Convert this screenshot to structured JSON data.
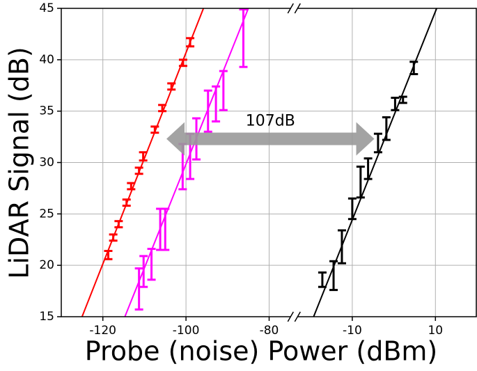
{
  "chart_data": {
    "type": "errorbar",
    "x_label": "Probe (noise) Power (dBm)",
    "y_label": "LiDAR Signal (dB)",
    "xlim": [
      -130,
      20
    ],
    "xbreak": [
      -74,
      -24
    ],
    "xticks": [
      -120,
      -100,
      -80,
      -10,
      10
    ],
    "ylim": [
      15,
      45
    ],
    "yticks": [
      15,
      20,
      25,
      30,
      35,
      40,
      45
    ],
    "grid": true,
    "series": [
      {
        "color": "#ff0000",
        "x": [
          -118.7,
          -117.5,
          -116.2,
          -114.3,
          -113.2,
          -111.3,
          -110.3,
          -107.5,
          -105.7,
          -103.5,
          -100.7,
          -99.0
        ],
        "values": [
          21.0,
          22.7,
          24.0,
          26.1,
          27.7,
          29.2,
          30.6,
          33.2,
          35.3,
          37.4,
          39.7,
          41.7
        ],
        "errors": [
          0.4,
          0.3,
          0.3,
          0.3,
          0.3,
          0.3,
          0.4,
          0.3,
          0.3,
          0.3,
          0.3,
          0.4
        ],
        "fit": {
          "x": [
            -125,
            -95.8
          ],
          "y": [
            15,
            45
          ]
        }
      },
      {
        "color": "#ff00ff",
        "x": [
          -111.3,
          -110.2,
          -108.3,
          -106.2,
          -105.0,
          -100.8,
          -99.0,
          -97.5,
          -94.7,
          -92.8,
          -91.0,
          -86.2
        ],
        "values": [
          17.7,
          19.4,
          20.1,
          23.5,
          23.5,
          29.6,
          30.6,
          32.3,
          35.0,
          35.7,
          37.0,
          42.1
        ],
        "errors": [
          2.0,
          1.5,
          1.5,
          2.0,
          2.0,
          2.2,
          2.2,
          2.0,
          2.0,
          1.7,
          1.9,
          2.8
        ],
        "fit": {
          "x": [
            -114.7,
            -85
          ],
          "y": [
            15,
            45
          ]
        }
      },
      {
        "color": "#000000",
        "x": [
          -17.2,
          -14.5,
          -12.5,
          -10.0,
          -8.0,
          -6.2,
          -3.8,
          -1.8,
          0.3,
          2.2,
          4.8
        ],
        "values": [
          18.6,
          19.0,
          21.8,
          25.5,
          28.1,
          29.4,
          31.9,
          33.3,
          35.7,
          36.1,
          39.2
        ],
        "errors": [
          0.7,
          1.4,
          1.6,
          1.0,
          1.5,
          1.0,
          0.9,
          1.1,
          0.6,
          0.3,
          0.6
        ],
        "fit": {
          "x": [
            -19.3,
            10.3
          ],
          "y": [
            15,
            45
          ]
        }
      }
    ],
    "annotation": {
      "text": "107dB",
      "from": [
        -104.7,
        32.3
      ],
      "to": [
        -4.7,
        32.3
      ],
      "color": "#999999"
    }
  }
}
